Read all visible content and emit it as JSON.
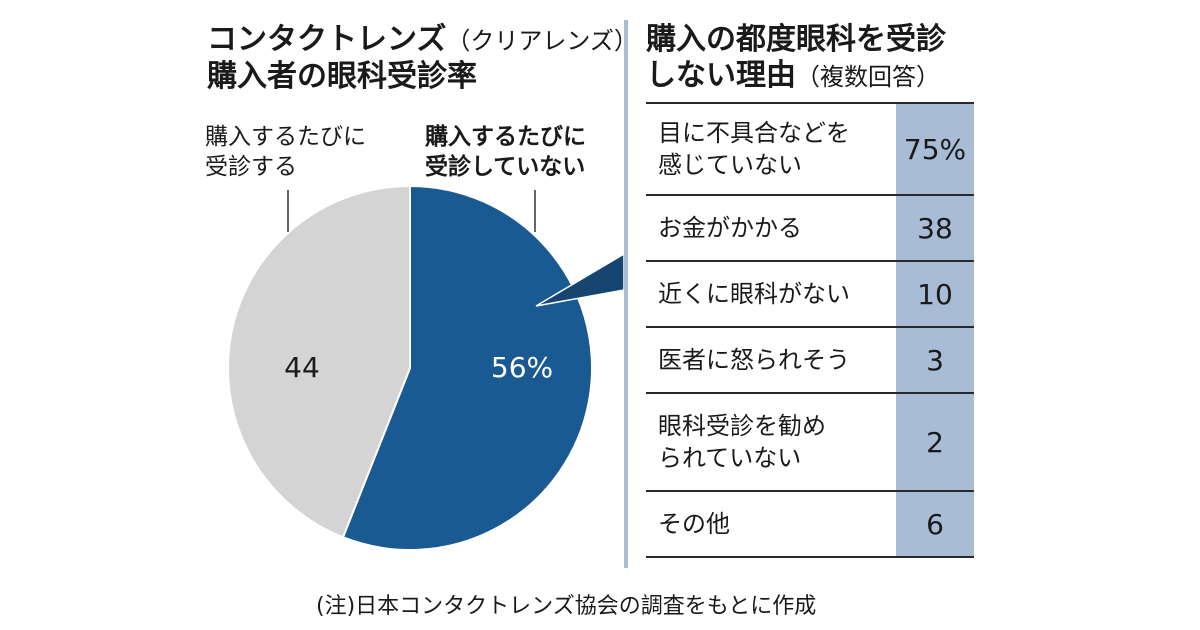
{
  "left_title": {
    "line1_main": "コンタクトレンズ",
    "line1_sub": "（クリアレンズ）",
    "line2": "購入者の眼科受診率"
  },
  "right_title": {
    "line1": "購入の都度眼科を受診",
    "line2_main": "しない理由",
    "line2_sub": "（複数回答）"
  },
  "pie_labels": {
    "visits_line1": "購入するたびに",
    "visits_line2": "受診する",
    "not_visits_line1": "購入するたびに",
    "not_visits_line2": "受診していない"
  },
  "chart_data": [
    {
      "type": "pie",
      "title": "コンタクトレンズ（クリアレンズ）購入者の眼科受診率",
      "categories": [
        "購入するたびに受診していない",
        "購入するたびに受診する"
      ],
      "values": [
        56,
        44
      ],
      "data_labels": [
        "56%",
        "44"
      ],
      "colors": [
        "#1a5a93",
        "#d4d4d4"
      ]
    },
    {
      "type": "table",
      "title": "購入の都度眼科を受診しない理由（複数回答）",
      "rows": [
        {
          "label_lines": [
            "目に不具合などを",
            "感じていない"
          ],
          "value": 75,
          "display": "75%"
        },
        {
          "label_lines": [
            "お金がかかる"
          ],
          "value": 38,
          "display": "38"
        },
        {
          "label_lines": [
            "近くに眼科がない"
          ],
          "value": 10,
          "display": "10"
        },
        {
          "label_lines": [
            "医者に怒られそう"
          ],
          "value": 3,
          "display": "3"
        },
        {
          "label_lines": [
            "眼科受診を勧め",
            "られていない"
          ],
          "value": 2,
          "display": "2"
        },
        {
          "label_lines": [
            "その他"
          ],
          "value": 6,
          "display": "6"
        }
      ]
    }
  ],
  "note": "(注)日本コンタクトレンズ協会の調査をもとに作成"
}
